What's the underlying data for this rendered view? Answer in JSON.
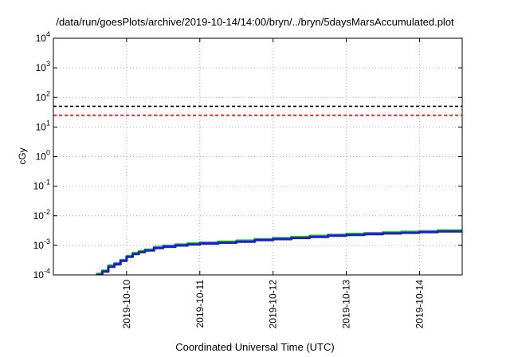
{
  "chart_data": {
    "type": "line",
    "title": "/data/run/goesPlots/archive/2019-10-14/14:00/bryn/../bryn/5daysMarsAccumulated.plot",
    "xlabel": "Coordinated Universal Time (UTC)",
    "ylabel": "cGy",
    "y_scale": "log",
    "ylim": [
      0.0001,
      10000
    ],
    "y_ticks": [
      {
        "value": 0.0001,
        "base": "10",
        "exp": "-4"
      },
      {
        "value": 0.001,
        "base": "10",
        "exp": "-3"
      },
      {
        "value": 0.01,
        "base": "10",
        "exp": "-2"
      },
      {
        "value": 0.1,
        "base": "10",
        "exp": "-1"
      },
      {
        "value": 1,
        "base": "10",
        "exp": "0"
      },
      {
        "value": 10,
        "base": "10",
        "exp": "1"
      },
      {
        "value": 100,
        "base": "10",
        "exp": "2"
      },
      {
        "value": 1000,
        "base": "10",
        "exp": "3"
      },
      {
        "value": 10000,
        "base": "10",
        "exp": "4"
      }
    ],
    "xlim": [
      "2019-10-09 00:00",
      "2019-10-14 14:00"
    ],
    "x_ticks": [
      "2019-10-10",
      "2019-10-11",
      "2019-10-12",
      "2019-10-13",
      "2019-10-14"
    ],
    "grid": true,
    "reference_lines": [
      {
        "y": 50,
        "color": "#000000",
        "style": "dashed"
      },
      {
        "y": 25,
        "color": "#ff0000",
        "style": "dashed"
      }
    ],
    "series": [
      {
        "color": "#33cc33",
        "x": [
          "2019-10-09 14:00",
          "2019-10-09 16:00",
          "2019-10-09 18:00",
          "2019-10-09 20:00",
          "2019-10-09 22:00",
          "2019-10-10 00:00",
          "2019-10-10 02:00",
          "2019-10-10 04:00",
          "2019-10-10 06:00",
          "2019-10-10 09:00",
          "2019-10-10 12:00",
          "2019-10-10 16:00",
          "2019-10-10 20:00",
          "2019-10-11 00:00",
          "2019-10-11 06:00",
          "2019-10-11 12:00",
          "2019-10-11 18:00",
          "2019-10-12 00:00",
          "2019-10-12 06:00",
          "2019-10-12 12:00",
          "2019-10-12 18:00",
          "2019-10-13 00:00",
          "2019-10-13 06:00",
          "2019-10-13 12:00",
          "2019-10-13 18:00",
          "2019-10-14 00:00",
          "2019-10-14 06:00",
          "2019-10-14 14:00"
        ],
        "values": [
          0.00011,
          0.00014,
          0.00021,
          0.00025,
          0.00032,
          0.00044,
          0.00055,
          0.00064,
          0.00072,
          0.00088,
          0.00098,
          0.00107,
          0.00116,
          0.00124,
          0.00133,
          0.00145,
          0.00162,
          0.00176,
          0.00192,
          0.0021,
          0.00228,
          0.00244,
          0.0026,
          0.00274,
          0.00288,
          0.00302,
          0.0032,
          0.00344
        ]
      },
      {
        "color": "#1a1adb",
        "x": [
          "2019-10-09 14:00",
          "2019-10-09 16:00",
          "2019-10-09 18:00",
          "2019-10-09 20:00",
          "2019-10-09 22:00",
          "2019-10-10 00:00",
          "2019-10-10 02:00",
          "2019-10-10 04:00",
          "2019-10-10 06:00",
          "2019-10-10 09:00",
          "2019-10-10 12:00",
          "2019-10-10 16:00",
          "2019-10-10 20:00",
          "2019-10-11 00:00",
          "2019-10-11 06:00",
          "2019-10-11 12:00",
          "2019-10-11 18:00",
          "2019-10-12 00:00",
          "2019-10-12 06:00",
          "2019-10-12 12:00",
          "2019-10-12 18:00",
          "2019-10-13 00:00",
          "2019-10-13 06:00",
          "2019-10-13 12:00",
          "2019-10-13 18:00",
          "2019-10-14 00:00",
          "2019-10-14 06:00",
          "2019-10-14 14:00"
        ],
        "values": [
          0.0001,
          0.00013,
          0.00019,
          0.00023,
          0.0003,
          0.00041,
          0.00051,
          0.00059,
          0.00067,
          0.00081,
          0.0009,
          0.00099,
          0.00107,
          0.00115,
          0.00123,
          0.00134,
          0.0015,
          0.00163,
          0.00178,
          0.00194,
          0.00211,
          0.00226,
          0.0024,
          0.00253,
          0.00266,
          0.00279,
          0.00296,
          0.00318
        ]
      }
    ]
  }
}
